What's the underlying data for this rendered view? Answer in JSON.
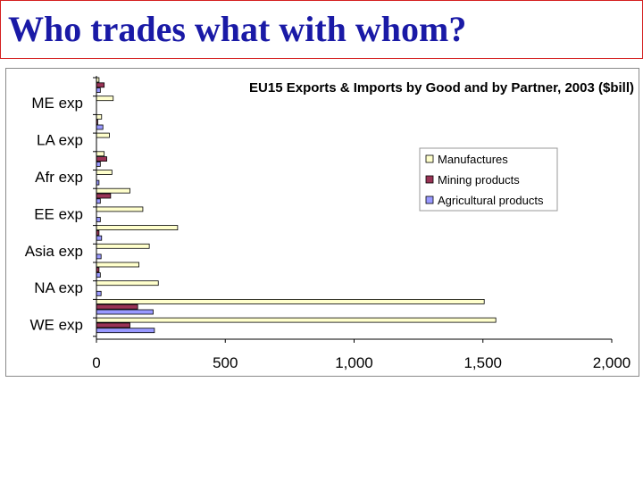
{
  "slide": {
    "title": "Who trades what with whom?",
    "title_color": "#1a1aa6",
    "border_color": "#d42020"
  },
  "chart_data": {
    "type": "bar",
    "orientation": "horizontal",
    "title": "EU15 Exports & Imports by Good and by Partner, 2003 ($bill)",
    "category_labels": [
      "ME exp",
      "LA exp",
      "Afr exp",
      "EE exp",
      "Asia exp",
      "NA exp",
      "WE exp"
    ],
    "rows": [
      {
        "group": "ME",
        "label": "",
        "values": [
          10,
          30,
          15
        ]
      },
      {
        "group": "ME",
        "label": "ME exp",
        "values": [
          65,
          0,
          0
        ]
      },
      {
        "group": "LA",
        "label": "",
        "values": [
          20,
          5,
          25
        ]
      },
      {
        "group": "LA",
        "label": "LA exp",
        "values": [
          50,
          0,
          0
        ]
      },
      {
        "group": "Afr",
        "label": "",
        "values": [
          30,
          40,
          15
        ]
      },
      {
        "group": "Afr",
        "label": "Afr exp",
        "values": [
          60,
          0,
          10
        ]
      },
      {
        "group": "EE",
        "label": "",
        "values": [
          130,
          55,
          15
        ]
      },
      {
        "group": "EE",
        "label": "EE exp",
        "values": [
          180,
          0,
          15
        ]
      },
      {
        "group": "Asia",
        "label": "",
        "values": [
          315,
          10,
          20
        ]
      },
      {
        "group": "Asia",
        "label": "Asia exp",
        "values": [
          205,
          0,
          18
        ]
      },
      {
        "group": "NA",
        "label": "",
        "values": [
          165,
          10,
          15
        ]
      },
      {
        "group": "NA",
        "label": "NA exp",
        "values": [
          240,
          0,
          18
        ]
      },
      {
        "group": "WE",
        "label": "",
        "values": [
          1505,
          160,
          220
        ]
      },
      {
        "group": "WE",
        "label": "WE exp",
        "values": [
          1550,
          130,
          225
        ]
      }
    ],
    "series": [
      {
        "name": "Manufactures",
        "color": "#ffffcc"
      },
      {
        "name": "Mining products",
        "color": "#993355"
      },
      {
        "name": "Agricultural products",
        "color": "#9999ff"
      }
    ],
    "xlim": [
      0,
      2000
    ],
    "xticks": [
      0,
      500,
      1000,
      1500,
      2000
    ],
    "xtick_labels": [
      "0",
      "500",
      "1,000",
      "1,500",
      "2,000"
    ],
    "grid": false,
    "legend_position": "right"
  }
}
